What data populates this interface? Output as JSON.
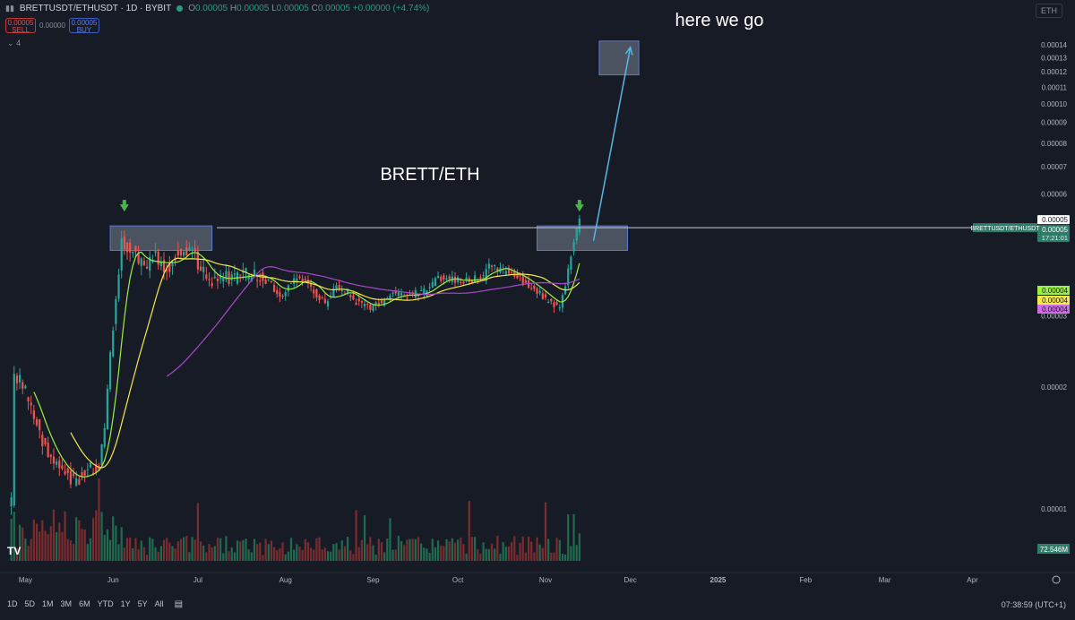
{
  "header": {
    "symbol": "BRETTUSDT/ETHUSDT · 1D · BYBIT",
    "ohlc": {
      "o": "0.00005",
      "h": "0.00005",
      "l": "0.00005",
      "c": "0.00005",
      "change": "+0.00000 (+4.74%)"
    },
    "sell": {
      "price": "0.00005",
      "label": "SELL"
    },
    "spread": "0.00000",
    "buy": {
      "price": "0.00005",
      "label": "BUY"
    },
    "indicators_count": "4",
    "quote_symbol": "ETH"
  },
  "annotations": {
    "title": "BRETT/ETH",
    "callout": "here we go"
  },
  "price_scale": {
    "labels": [
      "0.00014",
      "0.00013",
      "0.00012",
      "0.00011",
      "0.00010",
      "0.00009",
      "0.00008",
      "0.00007",
      "0.00006",
      "0.00005",
      "0.00003",
      "0.00002",
      "0.00001"
    ],
    "current_tag": "0.00005",
    "last_price": "0.00005",
    "countdown": "17:21:01",
    "ma_tags": [
      {
        "value": "0.00004",
        "color": "#9bef45"
      },
      {
        "value": "0.00004",
        "color": "#f5e94c"
      },
      {
        "value": "0.00004",
        "color": "#d26be8"
      }
    ],
    "line_label": "BRETTUSDT/ETHUSDT",
    "volume_tag": "72.546M"
  },
  "time_axis": [
    "May",
    "Jun",
    "Jul",
    "Aug",
    "Sep",
    "Oct",
    "Nov",
    "Dec",
    "2025",
    "Feb",
    "Mar",
    "Apr"
  ],
  "toolbar": {
    "timeframes": [
      "1D",
      "5D",
      "1M",
      "3M",
      "6M",
      "YTD",
      "1Y",
      "5Y",
      "All"
    ],
    "clock": "07:38:59 (UTC+1)"
  },
  "colors": {
    "background": "#171b26",
    "up": "#26a69a",
    "down": "#ef5350",
    "ma_fast": "#9bef45",
    "ma_mid": "#f5e94c",
    "ma_slow": "#a64ac9",
    "arrow": "#5ab6e6",
    "marker": "#4caf50",
    "box": "#8c96a8"
  },
  "chart_data": {
    "type": "candlestick",
    "title": "BRETT/ETH",
    "y_scale": "log",
    "ylim": [
      8.5e-06,
      0.000155
    ],
    "x_range": [
      "2024-04-22",
      "2025-04-24"
    ],
    "price_path": [
      [
        "2024-04-26",
        1.05e-05
      ],
      [
        "2024-04-27",
        2.15e-05
      ],
      [
        "2024-04-30",
        2.05e-05
      ],
      [
        "2024-05-03",
        1.75e-05
      ],
      [
        "2024-05-07",
        1.48e-05
      ],
      [
        "2024-05-11",
        1.3e-05
      ],
      [
        "2024-05-15",
        1.22e-05
      ],
      [
        "2024-05-19",
        1.17e-05
      ],
      [
        "2024-05-23",
        1.25e-05
      ],
      [
        "2024-05-27",
        1.28e-05
      ],
      [
        "2024-05-29",
        1.6e-05
      ],
      [
        "2024-05-31",
        2.4e-05
      ],
      [
        "2024-06-02",
        3.4e-05
      ],
      [
        "2024-06-04",
        4.55e-05
      ],
      [
        "2024-06-08",
        4.3e-05
      ],
      [
        "2024-06-12",
        3.95e-05
      ],
      [
        "2024-06-16",
        4.2e-05
      ],
      [
        "2024-06-20",
        3.9e-05
      ],
      [
        "2024-06-24",
        4.3e-05
      ],
      [
        "2024-06-28",
        4.4e-05
      ],
      [
        "2024-07-02",
        3.95e-05
      ],
      [
        "2024-07-06",
        3.65e-05
      ],
      [
        "2024-07-10",
        3.75e-05
      ],
      [
        "2024-07-14",
        3.7e-05
      ],
      [
        "2024-07-18",
        3.8e-05
      ],
      [
        "2024-07-22",
        3.78e-05
      ],
      [
        "2024-07-26",
        3.62e-05
      ],
      [
        "2024-07-30",
        3.35e-05
      ],
      [
        "2024-08-03",
        3.65e-05
      ],
      [
        "2024-08-07",
        3.72e-05
      ],
      [
        "2024-08-11",
        3.45e-05
      ],
      [
        "2024-08-15",
        3.2e-05
      ],
      [
        "2024-08-19",
        3.5e-05
      ],
      [
        "2024-08-23",
        3.4e-05
      ],
      [
        "2024-08-27",
        3.2e-05
      ],
      [
        "2024-08-31",
        3.15e-05
      ],
      [
        "2024-09-04",
        3.25e-05
      ],
      [
        "2024-09-08",
        3.4e-05
      ],
      [
        "2024-09-12",
        3.35e-05
      ],
      [
        "2024-09-16",
        3.4e-05
      ],
      [
        "2024-09-20",
        3.45e-05
      ],
      [
        "2024-09-24",
        3.75e-05
      ],
      [
        "2024-09-28",
        3.68e-05
      ],
      [
        "2024-10-02",
        3.65e-05
      ],
      [
        "2024-10-06",
        3.7e-05
      ],
      [
        "2024-10-10",
        3.72e-05
      ],
      [
        "2024-10-12",
        4.05e-05
      ],
      [
        "2024-10-16",
        3.88e-05
      ],
      [
        "2024-10-20",
        3.82e-05
      ],
      [
        "2024-10-24",
        3.65e-05
      ],
      [
        "2024-10-28",
        3.48e-05
      ],
      [
        "2024-10-31",
        3.35e-05
      ],
      [
        "2024-11-03",
        3.2e-05
      ],
      [
        "2024-11-06",
        3.15e-05
      ],
      [
        "2024-11-08",
        3.6e-05
      ],
      [
        "2024-11-10",
        4.25e-05
      ],
      [
        "2024-11-12",
        4.85e-05
      ],
      [
        "2024-11-13",
        5.1e-05
      ]
    ],
    "moving_averages": [
      {
        "color": "#9bef45",
        "period": 8
      },
      {
        "color": "#f5e94c",
        "period": 21
      },
      {
        "color": "#a64ac9",
        "period": 55
      }
    ],
    "volume": {
      "last": "72.546M"
    },
    "resistance_level": 4.95e-05,
    "zones": [
      {
        "from": "2024-05-31",
        "to": "2024-07-06",
        "low": 4.35e-05,
        "high": 5e-05
      },
      {
        "from": "2024-10-29",
        "to": "2024-11-30",
        "low": 4.35e-05,
        "high": 5e-05
      },
      {
        "from": "2024-11-20",
        "to": "2024-12-04",
        "low": 0.000118,
        "high": 0.000143
      }
    ],
    "markers": [
      "2024-06-05",
      "2024-11-13"
    ],
    "projection": {
      "from": [
        "2024-11-18",
        4.6e-05
      ],
      "to": [
        "2024-12-01",
        0.000138
      ]
    }
  }
}
